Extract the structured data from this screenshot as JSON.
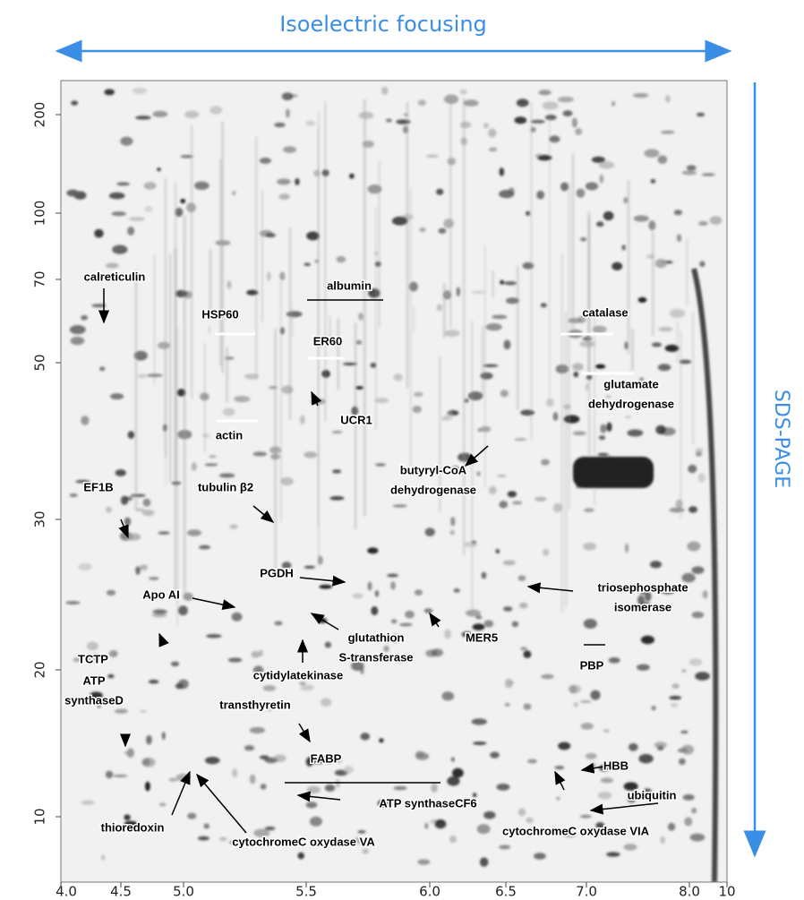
{
  "title": "Isoelectric focusing",
  "side_label": "SDS-PAGE",
  "y_axis": {
    "ticks": [
      "200",
      "100",
      "70",
      "50",
      "30",
      "20",
      "10"
    ]
  },
  "x_axis": {
    "ticks": [
      "4.0",
      "4.5",
      "5.0",
      "5.5",
      "6.0",
      "6.5",
      "7.0",
      "8.0",
      "10"
    ]
  },
  "annotations": [
    [
      "calreticulin"
    ],
    [
      "albumin"
    ],
    [
      "HSP60"
    ],
    [
      "catalase"
    ],
    [
      "ER60"
    ],
    [
      "glutamate",
      "dehydrogenase"
    ],
    [
      "UCR1"
    ],
    [
      "actin"
    ],
    [
      "butyryl-CoA",
      "dehydrogenase"
    ],
    [
      "tubulin β2"
    ],
    [
      "EF1B"
    ],
    [
      "PGDH"
    ],
    [
      "triosephosphate",
      "isomerase"
    ],
    [
      "Apo AI"
    ],
    [
      "MER5"
    ],
    [
      "glutathion",
      "S-transferase"
    ],
    [
      "TCTP"
    ],
    [
      "PBP"
    ],
    [
      "cytidylatekinase"
    ],
    [
      "ATP",
      "synthaseD"
    ],
    [
      "transthyretin"
    ],
    [
      "FABP"
    ],
    [
      "HBB"
    ],
    [
      "ubiquitin"
    ],
    [
      "ATP synthaseCF6"
    ],
    [
      "thioredoxin"
    ],
    [
      "cytochromeC oxydase VA"
    ],
    [
      "cytochromeC oxydase VIA"
    ]
  ]
}
